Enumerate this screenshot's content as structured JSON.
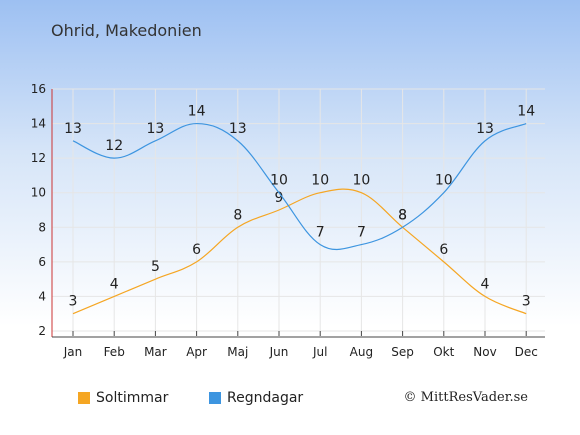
{
  "title": "Ohrid, Makedonien",
  "credit": "© MittResVader.se",
  "chart_data": {
    "type": "line",
    "categories": [
      "Jan",
      "Feb",
      "Mar",
      "Apr",
      "Maj",
      "Jun",
      "Jul",
      "Aug",
      "Sep",
      "Okt",
      "Nov",
      "Dec"
    ],
    "series": [
      {
        "name": "Soltimmar",
        "color": "#f5a623",
        "values": [
          3,
          4,
          5,
          6,
          8,
          9,
          10,
          10,
          8,
          6,
          4,
          3
        ]
      },
      {
        "name": "Regndagar",
        "color": "#3d95e0",
        "values": [
          13,
          12,
          13,
          14,
          13,
          10,
          7,
          7,
          8,
          10,
          13,
          14
        ]
      }
    ],
    "yticks": [
      2,
      4,
      6,
      8,
      10,
      12,
      14,
      16
    ],
    "ylim": [
      2,
      16
    ],
    "legend_position": "bottom-left",
    "grid": true
  }
}
